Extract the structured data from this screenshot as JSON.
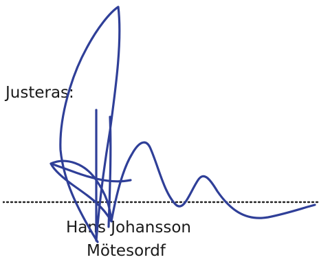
{
  "document": {
    "label": "Justeras:",
    "signer_name": "Hans Johansson",
    "signer_role": "Mötesordf",
    "ink_color": "#2f3f98"
  }
}
